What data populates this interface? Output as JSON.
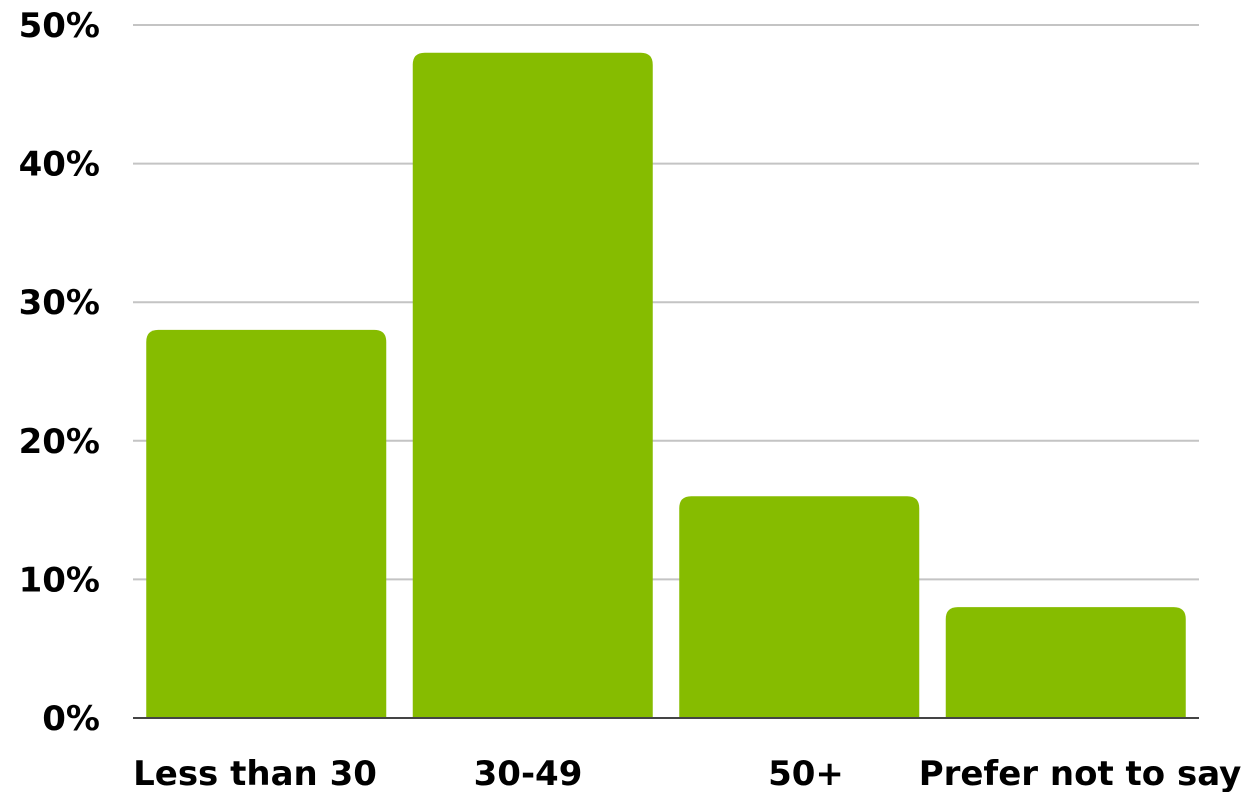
{
  "chart_data": {
    "type": "bar",
    "title": "",
    "xlabel": "",
    "ylabel": "",
    "categories": [
      "Less than 30",
      "30-49",
      "50+",
      "Prefer not to say"
    ],
    "values": [
      28,
      48,
      16,
      8
    ],
    "value_format": "percent",
    "ylim": [
      0,
      50
    ],
    "y_ticks": [
      "0%",
      "10%",
      "20%",
      "30%",
      "40%",
      "50%"
    ],
    "grid": true,
    "legend": "none",
    "bar_color": "#86bc00",
    "gridline_color": "#c4c4c4"
  }
}
